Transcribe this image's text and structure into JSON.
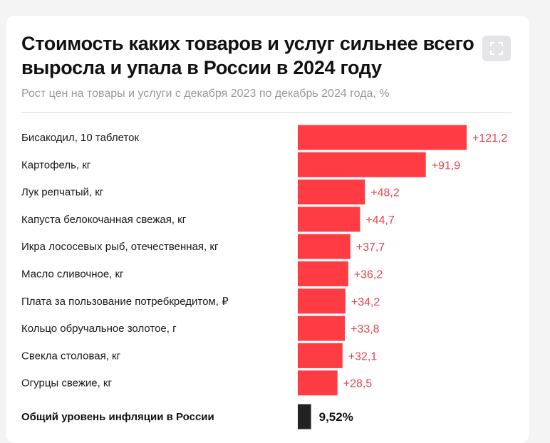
{
  "header": {
    "title": "Стоимость каких товаров и услуг сильнее всего выросла и упала в России в 2024 году",
    "subtitle": "Рост цен на товары и услуги с декабря 2023 по декабрь 2024 года, %",
    "expand_icon": "expand-icon"
  },
  "colors": {
    "bar": "#ff3b44",
    "value_text": "#e8454c",
    "total_bar": "#222222",
    "total_text": "#111111"
  },
  "chart_data": {
    "type": "bar",
    "orientation": "horizontal",
    "title": "Стоимость каких товаров и услуг сильнее всего выросла и упала в России в 2024 году",
    "subtitle": "Рост цен на товары и услуги с декабря 2023 по декабрь 2024 года, %",
    "categories": [
      "Бисакодил, 10 таблеток",
      "Картофель, кг",
      "Лук репчатый, кг",
      "Капуста белокочанная свежая, кг",
      "Икра лососевых рыб, отечественная, кг",
      "Масло сливочное, кг",
      "Плата за пользование потребкредитом, ₽",
      "Кольцо обручальное золотое, г",
      "Свекла столовая, кг",
      "Огурцы свежие, кг"
    ],
    "values": [
      121.2,
      91.9,
      48.2,
      44.7,
      37.7,
      36.2,
      34.2,
      33.8,
      32.1,
      28.5
    ],
    "value_labels": [
      "+121,2",
      "+91,9",
      "+48,2",
      "+44,7",
      "+37,7",
      "+36,2",
      "+34,2",
      "+33,8",
      "+32,1",
      "+28,5"
    ],
    "total": {
      "label": "Общий уровень инфляции в России",
      "value": 9.52,
      "value_label": "9,52%"
    },
    "xlim": [
      0,
      121.2
    ],
    "xlabel": "",
    "ylabel": "",
    "grid": false,
    "legend": "none"
  }
}
